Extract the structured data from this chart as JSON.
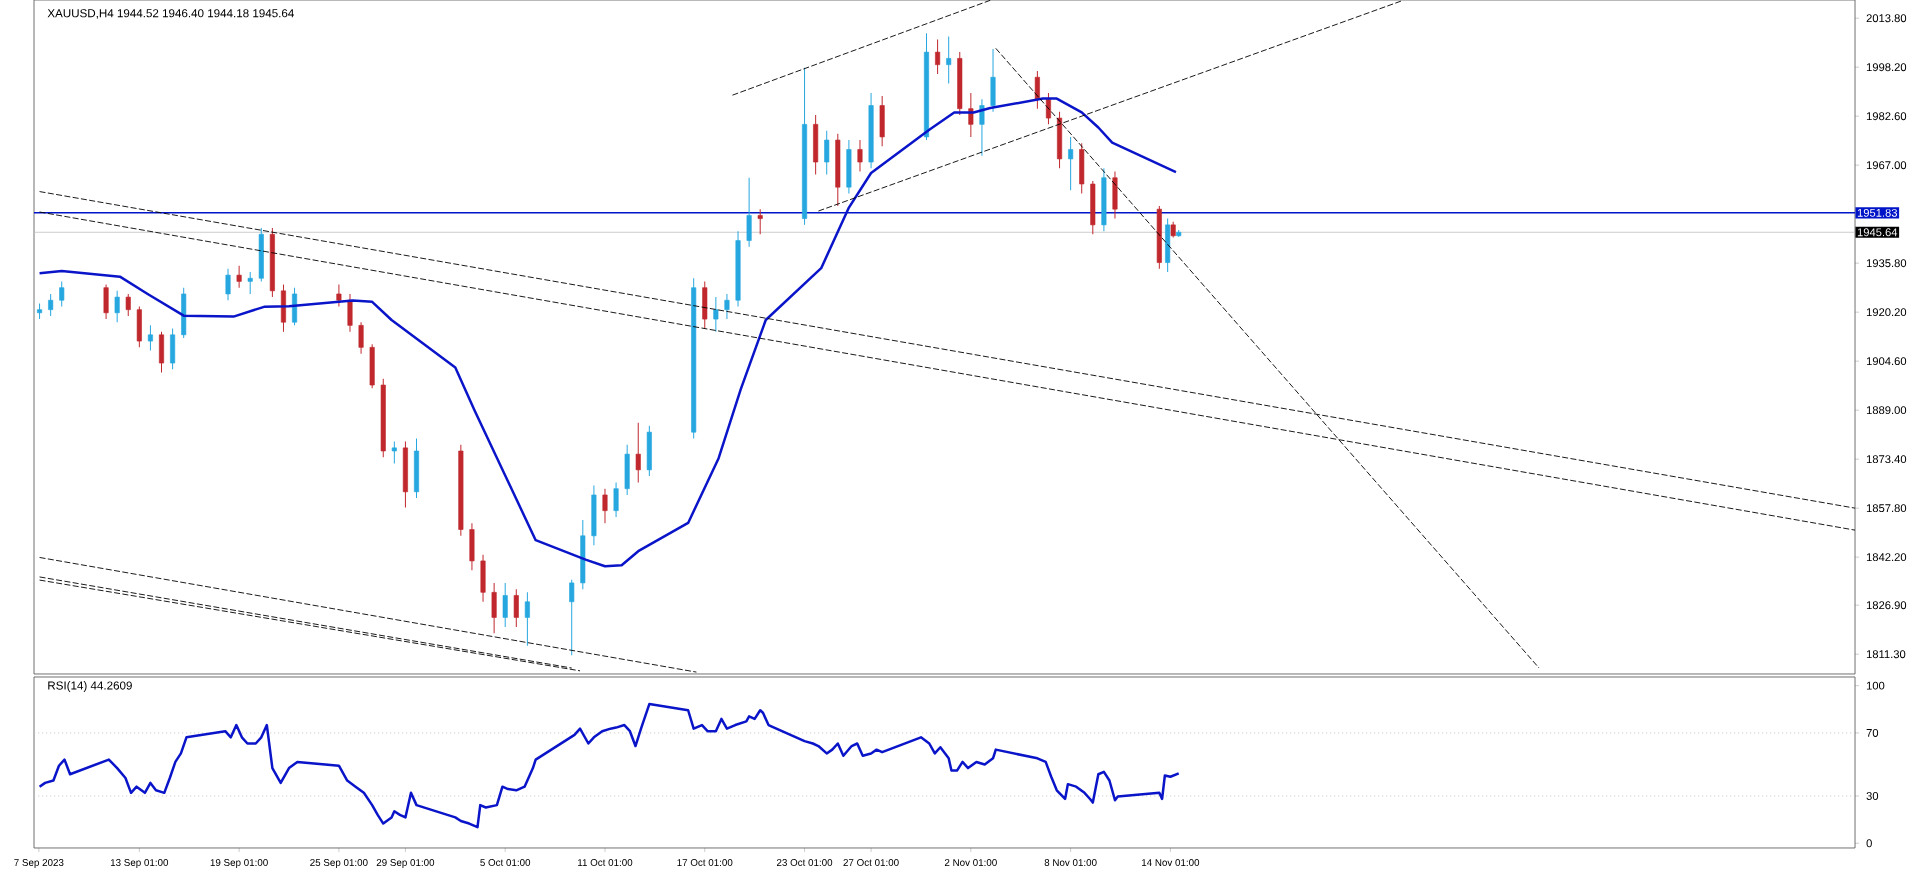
{
  "chart_data": [
    {
      "type": "candlestick",
      "title": "XAUUSD,H4 1944.52 1946.40 1944.18 1945.64",
      "xlim": [
        "2023-09-06T17:00",
        "2023-12-25T05:00"
      ],
      "ylim": [
        1805,
        2019.6
      ],
      "tick_labels": "y",
      "yticks": [
        {
          "value": 2013.8,
          "label": "2013.80"
        },
        {
          "value": 1998.2,
          "label": "1998.20"
        },
        {
          "value": 1982.6,
          "label": "1982.60"
        },
        {
          "value": 1967.0,
          "label": "1967.00"
        },
        {
          "value": 1935.8,
          "label": "1935.80"
        },
        {
          "value": 1920.2,
          "label": "1920.20"
        },
        {
          "value": 1904.6,
          "label": "1904.60"
        },
        {
          "value": 1889.0,
          "label": "1889.00"
        },
        {
          "value": 1873.4,
          "label": "1873.40"
        },
        {
          "value": 1857.8,
          "label": "1857.80"
        },
        {
          "value": 1842.2,
          "label": "1842.20"
        },
        {
          "value": 1826.9,
          "label": "1826.90"
        },
        {
          "value": 1811.3,
          "label": "1811.30"
        }
      ],
      "ref_lines": [
        {
          "axis": "y",
          "value": 1951.83,
          "label": "1951.83",
          "color": "#0014c8",
          "line_style": "solid"
        },
        {
          "axis": "y",
          "value": 1945.64,
          "label": "1945.64",
          "color": "#c0c0c0",
          "line_style": "solid"
        }
      ],
      "series": [
        {
          "x": [
            "2023-09-07T01:00",
            "2023-09-07T17:00",
            "2023-09-08T09:00",
            "2023-09-11T01:00",
            "2023-09-11T17:00",
            "2023-09-12T09:00",
            "2023-09-13T01:00",
            "2023-09-13T17:00",
            "2023-09-14T09:00",
            "2023-09-15T01:00",
            "2023-09-15T17:00",
            "2023-09-18T09:00",
            "2023-09-19T01:00",
            "2023-09-19T17:00",
            "2023-09-20T09:00",
            "2023-09-21T01:00",
            "2023-09-21T17:00",
            "2023-09-22T09:00",
            "2023-09-25T01:00",
            "2023-09-25T17:00",
            "2023-09-26T09:00",
            "2023-09-27T01:00",
            "2023-09-27T17:00",
            "2023-09-28T09:00",
            "2023-09-29T01:00",
            "2023-09-29T17:00",
            "2023-10-02T09:00",
            "2023-10-03T01:00",
            "2023-10-03T17:00",
            "2023-10-04T09:00",
            "2023-10-05T01:00",
            "2023-10-05T17:00",
            "2023-10-06T09:00",
            "2023-10-09T01:00",
            "2023-10-09T17:00",
            "2023-10-10T09:00",
            "2023-10-11T01:00",
            "2023-10-11T17:00",
            "2023-10-12T09:00",
            "2023-10-13T01:00",
            "2023-10-13T17:00",
            "2023-10-16T09:00",
            "2023-10-17T01:00",
            "2023-10-17T17:00",
            "2023-10-18T09:00",
            "2023-10-19T01:00",
            "2023-10-19T17:00",
            "2023-10-20T09:00",
            "2023-10-23T01:00",
            "2023-10-23T17:00",
            "2023-10-24T09:00",
            "2023-10-25T01:00",
            "2023-10-25T17:00",
            "2023-10-26T09:00",
            "2023-10-27T01:00",
            "2023-10-27T17:00",
            "2023-10-30T09:00",
            "2023-10-31T01:00",
            "2023-10-31T17:00",
            "2023-11-01T09:00",
            "2023-11-02T01:00",
            "2023-11-02T17:00",
            "2023-11-03T09:00",
            "2023-11-06T01:00",
            "2023-11-06T17:00",
            "2023-11-07T09:00",
            "2023-11-08T01:00",
            "2023-11-08T17:00",
            "2023-11-09T09:00",
            "2023-11-10T01:00",
            "2023-11-10T17:00",
            "2023-11-13T09:00",
            "2023-11-13T21:00",
            "2023-11-14T05:00",
            "2023-11-14T13:00"
          ],
          "ohlc": [
            [
              1920,
              1923,
              1918,
              1921
            ],
            [
              1921,
              1926,
              1919,
              1924
            ],
            [
              1924,
              1930,
              1922,
              1928
            ],
            [
              1928,
              1929,
              1918,
              1920
            ],
            [
              1920,
              1927,
              1917,
              1925
            ],
            [
              1925,
              1926,
              1919,
              1921
            ],
            [
              1921,
              1922,
              1909,
              1911
            ],
            [
              1911,
              1916,
              1908,
              1913
            ],
            [
              1913,
              1914,
              1901,
              1904
            ],
            [
              1904,
              1915,
              1902,
              1913
            ],
            [
              1913,
              1928,
              1912,
              1926
            ],
            [
              1926,
              1934,
              1924,
              1932
            ],
            [
              1932,
              1935,
              1928,
              1930
            ],
            [
              1930,
              1933,
              1926,
              1931
            ],
            [
              1931,
              1947,
              1930,
              1945
            ],
            [
              1945,
              1947,
              1925,
              1927
            ],
            [
              1927,
              1929,
              1914,
              1917
            ],
            [
              1917,
              1928,
              1916,
              1926
            ],
            [
              1926,
              1929,
              1922,
              1924
            ],
            [
              1924,
              1926,
              1914,
              1916
            ],
            [
              1916,
              1917,
              1907,
              1909
            ],
            [
              1909,
              1910,
              1896,
              1897
            ],
            [
              1897,
              1899,
              1874,
              1876
            ],
            [
              1876,
              1879,
              1872,
              1877
            ],
            [
              1877,
              1879,
              1858,
              1863
            ],
            [
              1863,
              1880,
              1861,
              1876
            ],
            [
              1876,
              1878,
              1849,
              1851
            ],
            [
              1851,
              1853,
              1838,
              1841
            ],
            [
              1841,
              1843,
              1828,
              1831
            ],
            [
              1831,
              1834,
              1818,
              1823
            ],
            [
              1823,
              1834,
              1820,
              1830
            ],
            [
              1830,
              1832,
              1820,
              1823
            ],
            [
              1823,
              1831,
              1814,
              1828
            ],
            [
              1828,
              1835,
              1811,
              1834
            ],
            [
              1834,
              1854,
              1832,
              1849
            ],
            [
              1849,
              1865,
              1846,
              1862
            ],
            [
              1862,
              1864,
              1853,
              1857
            ],
            [
              1857,
              1866,
              1855,
              1864
            ],
            [
              1864,
              1878,
              1862,
              1875
            ],
            [
              1875,
              1885,
              1866,
              1870
            ],
            [
              1870,
              1884,
              1868,
              1882
            ],
            [
              1882,
              1931,
              1880,
              1928
            ],
            [
              1928,
              1930,
              1915,
              1918
            ],
            [
              1918,
              1925,
              1914,
              1921
            ],
            [
              1921,
              1926,
              1918,
              1924
            ],
            [
              1924,
              1946,
              1922,
              1943
            ],
            [
              1943,
              1963,
              1941,
              1951
            ],
            [
              1951,
              1953,
              1945,
              1950
            ],
            [
              1950,
              1998,
              1948,
              1980
            ],
            [
              1980,
              1983,
              1964,
              1968
            ],
            [
              1968,
              1978,
              1964,
              1975
            ],
            [
              1975,
              1977,
              1954,
              1960
            ],
            [
              1960,
              1975,
              1958,
              1972
            ],
            [
              1972,
              1975,
              1965,
              1968
            ],
            [
              1968,
              1990,
              1966,
              1986
            ],
            [
              1986,
              1989,
              1973,
              1976
            ],
            [
              1976,
              2009,
              1975,
              2003
            ],
            [
              2003,
              2007,
              1996,
              1999
            ],
            [
              1999,
              2008,
              1993,
              2001
            ],
            [
              2001,
              2003,
              1983,
              1985
            ],
            [
              1985,
              1990,
              1976,
              1980
            ],
            [
              1980,
              1988,
              1970,
              1986
            ],
            [
              1986,
              2004,
              1984,
              1995
            ],
            [
              1995,
              1997,
              1985,
              1988
            ],
            [
              1988,
              1990,
              1980,
              1982
            ],
            [
              1982,
              1984,
              1966,
              1969
            ],
            [
              1969,
              1976,
              1959,
              1972
            ],
            [
              1972,
              1974,
              1958,
              1961
            ],
            [
              1961,
              1962,
              1945,
              1948
            ],
            [
              1948,
              1966,
              1946,
              1963
            ],
            [
              1963,
              1965,
              1950,
              1953
            ],
            [
              1953,
              1954,
              1934,
              1936
            ],
            [
              1936,
              1950,
              1933,
              1948
            ],
            [
              1948,
              1949,
              1944,
              1944.52
            ],
            [
              1944.52,
              1946.4,
              1944.18,
              1945.64
            ]
          ],
          "colors": [
            "#26a7df",
            "#26a7df",
            "#26a7df",
            "#c0282d",
            "#26a7df",
            "#c0282d",
            "#c0282d",
            "#26a7df",
            "#c0282d",
            "#26a7df",
            "#26a7df",
            "#26a7df",
            "#c0282d",
            "#26a7df",
            "#26a7df",
            "#c0282d",
            "#c0282d",
            "#26a7df",
            "#c0282d",
            "#c0282d",
            "#c0282d",
            "#c0282d",
            "#c0282d",
            "#26a7df",
            "#c0282d",
            "#26a7df",
            "#c0282d",
            "#c0282d",
            "#c0282d",
            "#c0282d",
            "#26a7df",
            "#c0282d",
            "#26a7df",
            "#26a7df",
            "#26a7df",
            "#26a7df",
            "#c0282d",
            "#26a7df",
            "#26a7df",
            "#c0282d",
            "#26a7df",
            "#26a7df",
            "#c0282d",
            "#26a7df",
            "#26a7df",
            "#26a7df",
            "#26a7df",
            "#c0282d",
            "#26a7df",
            "#c0282d",
            "#26a7df",
            "#c0282d",
            "#26a7df",
            "#c0282d",
            "#26a7df",
            "#c0282d",
            "#26a7df",
            "#c0282d",
            "#26a7df",
            "#c0282d",
            "#c0282d",
            "#26a7df",
            "#26a7df",
            "#c0282d",
            "#c0282d",
            "#c0282d",
            "#26a7df",
            "#c0282d",
            "#c0282d",
            "#26a7df",
            "#c0282d",
            "#c0282d",
            "#26a7df",
            "#c0282d",
            "#26a7df"
          ]
        },
        {
          "type": "line",
          "color": "#0a14c8",
          "line_style": "solid",
          "x": [
            "2023-09-07T01:00",
            "2023-09-08T09:00",
            "2023-09-11T21:00",
            "2023-09-13T13:00",
            "2023-09-15T17:00",
            "2023-09-18T17:00",
            "2023-09-20T13:00",
            "2023-09-22T01:00",
            "2023-09-25T21:00",
            "2023-09-27T01:00",
            "2023-09-28T05:00",
            "2023-10-02T01:00",
            "2023-10-03T05:00",
            "2023-10-05T01:00",
            "2023-10-06T21:00",
            "2023-10-09T21:00",
            "2023-10-11T01:00",
            "2023-10-12T01:00",
            "2023-10-13T01:00",
            "2023-10-16T01:00",
            "2023-10-17T21:00",
            "2023-10-19T05:00",
            "2023-10-20T17:00",
            "2023-10-24T01:00",
            "2023-10-25T17:00",
            "2023-10-27T01:00",
            "2023-10-30T13:00",
            "2023-11-01T01:00",
            "2023-11-02T05:00",
            "2023-11-03T05:00",
            "2023-11-06T09:00",
            "2023-11-07T05:00",
            "2023-11-08T17:00",
            "2023-11-09T17:00",
            "2023-11-10T13:00",
            "2023-11-14T09:00"
          ],
          "values": [
            1932.6,
            1933.3,
            1931.5,
            1926.0,
            1919.1,
            1918.8,
            1921.9,
            1922.1,
            1923.9,
            1923.5,
            1917.7,
            1902.6,
            1888.8,
            1868.2,
            1847.6,
            1841.4,
            1839.3,
            1839.6,
            1844.1,
            1853.1,
            1873.7,
            1895.7,
            1917.7,
            1934.2,
            1953.5,
            1964.5,
            1978.3,
            1983.8,
            1983.8,
            1985.2,
            1988.2,
            1988.2,
            1983.8,
            1979.0,
            1974.2,
            1964.8
          ]
        },
        {
          "type": "line",
          "color": "#000000",
          "line_style": "dashed",
          "x": [
            "2023-09-07T01:00",
            "2023-12-25T05:00"
          ],
          "values": [
            1958.6,
            1857.8
          ]
        },
        {
          "type": "line",
          "color": "#000000",
          "line_style": "dashed",
          "x": [
            "2023-09-07T01:00",
            "2023-12-25T05:00"
          ],
          "values": [
            1952.1,
            1850.8
          ]
        },
        {
          "type": "line",
          "color": "#000000",
          "line_style": "dashed",
          "x": [
            "2023-09-07T01:00",
            "2023-10-16T13:00"
          ],
          "values": [
            1842.1,
            1805.6
          ]
        },
        {
          "type": "line",
          "color": "#000000",
          "line_style": "dashed",
          "x": [
            "2023-09-07T01:00",
            "2023-10-09T01:00"
          ],
          "values": [
            1835.9,
            1806.9
          ]
        },
        {
          "type": "line",
          "color": "#000000",
          "line_style": "dashed",
          "x": [
            "2023-09-07T01:00",
            "2023-10-09T13:00"
          ],
          "values": [
            1834.9,
            1806.0
          ]
        },
        {
          "type": "line",
          "color": "#000000",
          "line_style": "dashed",
          "x": [
            "2023-10-18T17:00",
            "2023-11-03T05:00"
          ],
          "values": [
            1989.3,
            2019.5
          ]
        },
        {
          "type": "line",
          "color": "#000000",
          "line_style": "dashed",
          "x": [
            "2023-10-23T21:00",
            "2023-11-28T01:00"
          ],
          "values": [
            1952.4,
            2019.5
          ]
        },
        {
          "type": "line",
          "color": "#000000",
          "line_style": "dashed",
          "x": [
            "2023-11-03T13:00",
            "2023-12-06T05:00"
          ],
          "values": [
            2004.2,
            1806.9
          ]
        }
      ]
    },
    {
      "type": "line",
      "title": "RSI(14) 44.2609",
      "xlim": [
        "2023-09-06T17:00",
        "2023-12-25T05:00"
      ],
      "ylim": [
        -3,
        105.5
      ],
      "yticks": [
        0,
        30,
        70,
        100
      ],
      "xticks": [
        {
          "value": "2023-09-07",
          "label": "7 Sep 2023"
        },
        {
          "value": "2023-09-13T01:00",
          "label": "13 Sep 01:00"
        },
        {
          "value": "2023-09-19T01:00",
          "label": "19 Sep 01:00"
        },
        {
          "value": "2023-09-25T01:00",
          "label": "25 Sep 01:00"
        },
        {
          "value": "2023-09-29T01:00",
          "label": "29 Sep 01:00"
        },
        {
          "value": "2023-10-05T01:00",
          "label": "5 Oct 01:00"
        },
        {
          "value": "2023-10-11T01:00",
          "label": "11 Oct 01:00"
        },
        {
          "value": "2023-10-17T01:00",
          "label": "17 Oct 01:00"
        },
        {
          "value": "2023-10-23T01:00",
          "label": "23 Oct 01:00"
        },
        {
          "value": "2023-10-27T01:00",
          "label": "27 Oct 01:00"
        },
        {
          "value": "2023-11-02T01:00",
          "label": "2 Nov 01:00"
        },
        {
          "value": "2023-11-08T01:00",
          "label": "8 Nov 01:00"
        },
        {
          "value": "2023-11-14T01:00",
          "label": "14 Nov 01:00"
        }
      ],
      "ref_lines": [
        {
          "axis": "y",
          "value": 30,
          "color": "#c0c0c0",
          "line_style": "dotted"
        },
        {
          "axis": "y",
          "value": 70,
          "color": "#c0c0c0",
          "line_style": "dotted"
        }
      ],
      "series": [
        {
          "color": "#0a14c8",
          "line_style": "solid",
          "x": [
            "2023-09-07T01:00",
            "2023-09-07T09:00",
            "2023-09-07T21:00",
            "2023-09-08T05:00",
            "2023-09-08T13:00",
            "2023-09-08T21:00",
            "2023-09-11T05:00",
            "2023-09-11T17:00",
            "2023-09-12T05:00",
            "2023-09-12T13:00",
            "2023-09-12T21:00",
            "2023-09-13T09:00",
            "2023-09-13T17:00",
            "2023-09-14T01:00",
            "2023-09-14T13:00",
            "2023-09-14T21:00",
            "2023-09-15T05:00",
            "2023-09-15T13:00",
            "2023-09-15T21:00",
            "2023-09-18T05:00",
            "2023-09-18T13:00",
            "2023-09-18T21:00",
            "2023-09-19T05:00",
            "2023-09-19T13:00",
            "2023-09-20T01:00",
            "2023-09-20T09:00",
            "2023-09-20T17:00",
            "2023-09-21T01:00",
            "2023-09-21T13:00",
            "2023-09-22T01:00",
            "2023-09-22T13:00",
            "2023-09-25T01:00",
            "2023-09-25T13:00",
            "2023-09-26T01:00",
            "2023-09-26T13:00",
            "2023-09-27T01:00",
            "2023-09-27T09:00",
            "2023-09-27T17:00",
            "2023-09-28T05:00",
            "2023-09-28T09:00",
            "2023-09-28T17:00",
            "2023-09-29T01:00",
            "2023-09-29T09:00",
            "2023-09-29T17:00",
            "2023-10-02T01:00",
            "2023-10-02T09:00",
            "2023-10-02T21:00",
            "2023-10-03T09:00",
            "2023-10-03T13:00",
            "2023-10-03T21:00",
            "2023-10-04T13:00",
            "2023-10-04T21:00",
            "2023-10-05T05:00",
            "2023-10-05T17:00",
            "2023-10-06T05:00",
            "2023-10-06T17:00",
            "2023-10-06T21:00",
            "2023-10-09T05:00",
            "2023-10-09T13:00",
            "2023-10-10T01:00",
            "2023-10-10T09:00",
            "2023-10-10T21:00",
            "2023-10-11T09:00",
            "2023-10-11T17:00",
            "2023-10-12T05:00",
            "2023-10-12T13:00",
            "2023-10-12T21:00",
            "2023-10-13T05:00",
            "2023-10-13T17:00",
            "2023-10-16T01:00",
            "2023-10-16T09:00",
            "2023-10-16T21:00",
            "2023-10-17T05:00",
            "2023-10-17T17:00",
            "2023-10-18T01:00",
            "2023-10-18T09:00",
            "2023-10-18T21:00",
            "2023-10-19T13:00",
            "2023-10-19T17:00",
            "2023-10-20T01:00",
            "2023-10-20T09:00",
            "2023-10-20T13:00",
            "2023-10-20T21:00",
            "2023-10-23T01:00",
            "2023-10-23T13:00",
            "2023-10-23T21:00",
            "2023-10-24T09:00",
            "2023-10-24T17:00",
            "2023-10-25T01:00",
            "2023-10-25T09:00",
            "2023-10-25T21:00",
            "2023-10-26T05:00",
            "2023-10-26T13:00",
            "2023-10-27T01:00",
            "2023-10-27T09:00",
            "2023-10-27T17:00",
            "2023-10-30T01:00",
            "2023-10-30T13:00",
            "2023-10-30T21:00",
            "2023-10-31T05:00",
            "2023-10-31T17:00",
            "2023-10-31T21:00",
            "2023-11-01T05:00",
            "2023-11-01T13:00",
            "2023-11-01T21:00",
            "2023-11-02T09:00",
            "2023-11-02T21:00",
            "2023-11-03T09:00",
            "2023-11-03T13:00",
            "2023-11-06T01:00",
            "2023-11-06T13:00",
            "2023-11-06T21:00",
            "2023-11-07T05:00",
            "2023-11-07T17:00",
            "2023-11-07T21:00",
            "2023-11-08T09:00",
            "2023-11-08T21:00",
            "2023-11-09T05:00",
            "2023-11-09T09:00",
            "2023-11-09T17:00",
            "2023-11-10T01:00",
            "2023-11-10T09:00",
            "2023-11-10T17:00",
            "2023-11-10T21:00",
            "2023-11-13T09:00",
            "2023-11-13T13:00",
            "2023-11-13T17:00",
            "2023-11-14T01:00",
            "2023-11-14T13:00"
          ],
          "values": [
            35.9,
            38.3,
            39.8,
            49.2,
            53.1,
            43.8,
            53.1,
            47.7,
            41.4,
            32.0,
            35.9,
            32.0,
            38.3,
            33.6,
            32.0,
            41.4,
            51.6,
            57.0,
            67.2,
            71.1,
            67.2,
            75.0,
            67.2,
            63.3,
            63.3,
            67.2,
            75.0,
            47.7,
            38.3,
            47.7,
            51.6,
            49.2,
            39.8,
            35.9,
            32.0,
            24.2,
            18.0,
            12.5,
            16.4,
            20.3,
            18.0,
            16.4,
            32.0,
            24.2,
            16.4,
            14.1,
            12.5,
            10.2,
            24.2,
            22.7,
            24.2,
            35.9,
            34.4,
            33.6,
            35.9,
            47.7,
            53.1,
            68.8,
            72.7,
            63.3,
            67.2,
            71.1,
            72.7,
            73.4,
            75.0,
            71.1,
            61.7,
            72.7,
            88.3,
            84.4,
            72.7,
            75.0,
            71.1,
            71.1,
            78.9,
            72.7,
            75.0,
            77.3,
            80.5,
            78.9,
            84.4,
            82.8,
            75.0,
            64.8,
            63.3,
            61.7,
            57.0,
            59.4,
            63.3,
            55.5,
            61.7,
            63.3,
            55.5,
            57.0,
            59.4,
            57.8,
            67.2,
            63.3,
            57.0,
            60.9,
            53.9,
            46.1,
            46.1,
            51.6,
            47.7,
            51.6,
            50.0,
            53.9,
            59.4,
            53.9,
            51.6,
            42.2,
            33.6,
            28.1,
            37.5,
            35.9,
            32.0,
            28.1,
            25.8,
            43.8,
            45.3,
            39.8,
            27.3,
            29.7,
            32.0,
            28.1,
            43.0,
            42.2,
            44.3
          ]
        }
      ]
    }
  ]
}
